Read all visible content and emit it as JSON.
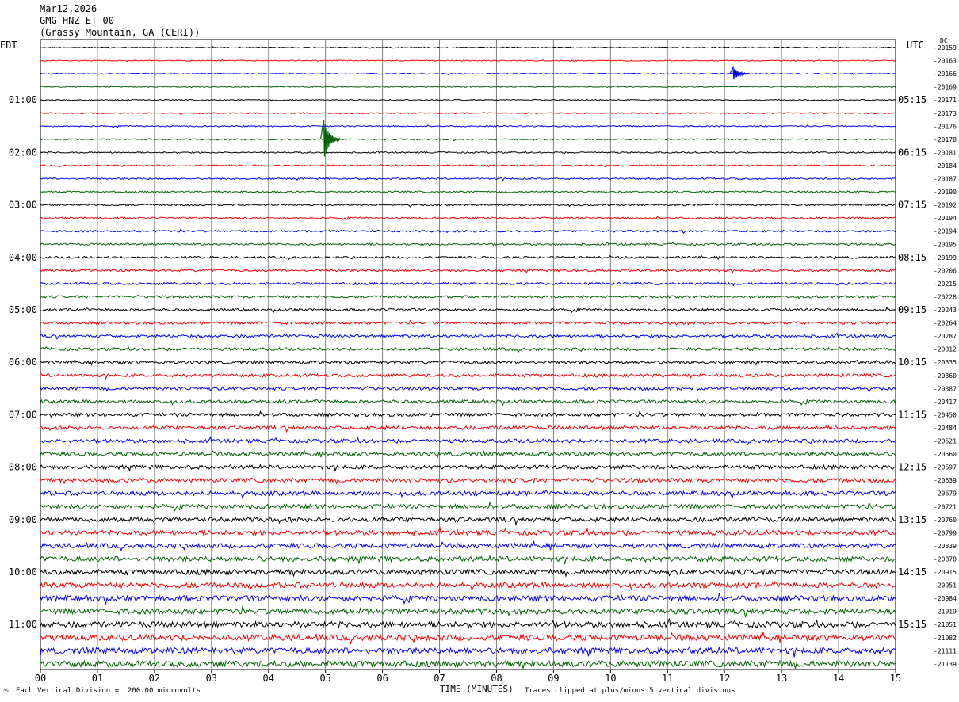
{
  "header": {
    "date": "Mar12,2026",
    "channel": "GMG HNZ ET 00",
    "station": "(Grassy Mountain, GA (CERI))"
  },
  "left_tz": "EDT",
  "right_tz": "UTC",
  "dc_label": "DC",
  "footer": {
    "vertical_division": "Each Vertical Division =  200.00 microvolts",
    "xaxis_title": "TIME (MINUTES)",
    "clip_note": "Traces clipped at plus/minus 5 vertical divisions"
  },
  "colors": {
    "trace_cycle": [
      "#000000",
      "#ff0000",
      "#0000ff",
      "#006400"
    ],
    "grid": "#808080",
    "frame": "#000000"
  },
  "chart_data": {
    "type": "line",
    "title": "GMG HNZ ET 00",
    "xlabel": "TIME (MINUTES)",
    "xlim": [
      0,
      15
    ],
    "x_ticks": [
      "00",
      "01",
      "02",
      "03",
      "04",
      "05",
      "06",
      "07",
      "08",
      "09",
      "10",
      "11",
      "12",
      "13",
      "14",
      "15"
    ],
    "traces_per_hour": 4,
    "trace_count": 48,
    "left_hour_labels": [
      "01:00",
      "02:00",
      "03:00",
      "04:00",
      "05:00",
      "06:00",
      "07:00",
      "08:00",
      "09:00",
      "10:00",
      "11:00"
    ],
    "right_hour_labels": [
      "05:15",
      "06:15",
      "07:15",
      "08:15",
      "09:15",
      "10:15",
      "11:15",
      "12:15",
      "13:15",
      "14:15",
      "15:15"
    ],
    "dc_offsets": [
      "-20159",
      "-20163",
      "-20166",
      "-20169",
      "-20171",
      "-20173",
      "-20176",
      "-20178",
      "-20181",
      "-20184",
      "-20187",
      "-20190",
      "-20192",
      "-20194",
      "-20194",
      "-20195",
      "-20199",
      "-20206",
      "-20215",
      "-20228",
      "-20243",
      "-20264",
      "-20287",
      "-20312",
      "-20335",
      "-20360",
      "-20387",
      "-20417",
      "-20450",
      "-20484",
      "-20521",
      "-20560",
      "-20597",
      "-20639",
      "-20679",
      "-20721",
      "-20760",
      "-20799",
      "-20839",
      "-20878",
      "-20915",
      "-20951",
      "-20984",
      "-21019",
      "-21051",
      "-21082",
      "-21111",
      "-21139"
    ],
    "events": [
      {
        "trace": 2,
        "minute": 12.15,
        "amplitude_divisions": 1.0
      },
      {
        "trace": 7,
        "minute": 4.97,
        "amplitude_divisions": 3.0
      }
    ]
  }
}
